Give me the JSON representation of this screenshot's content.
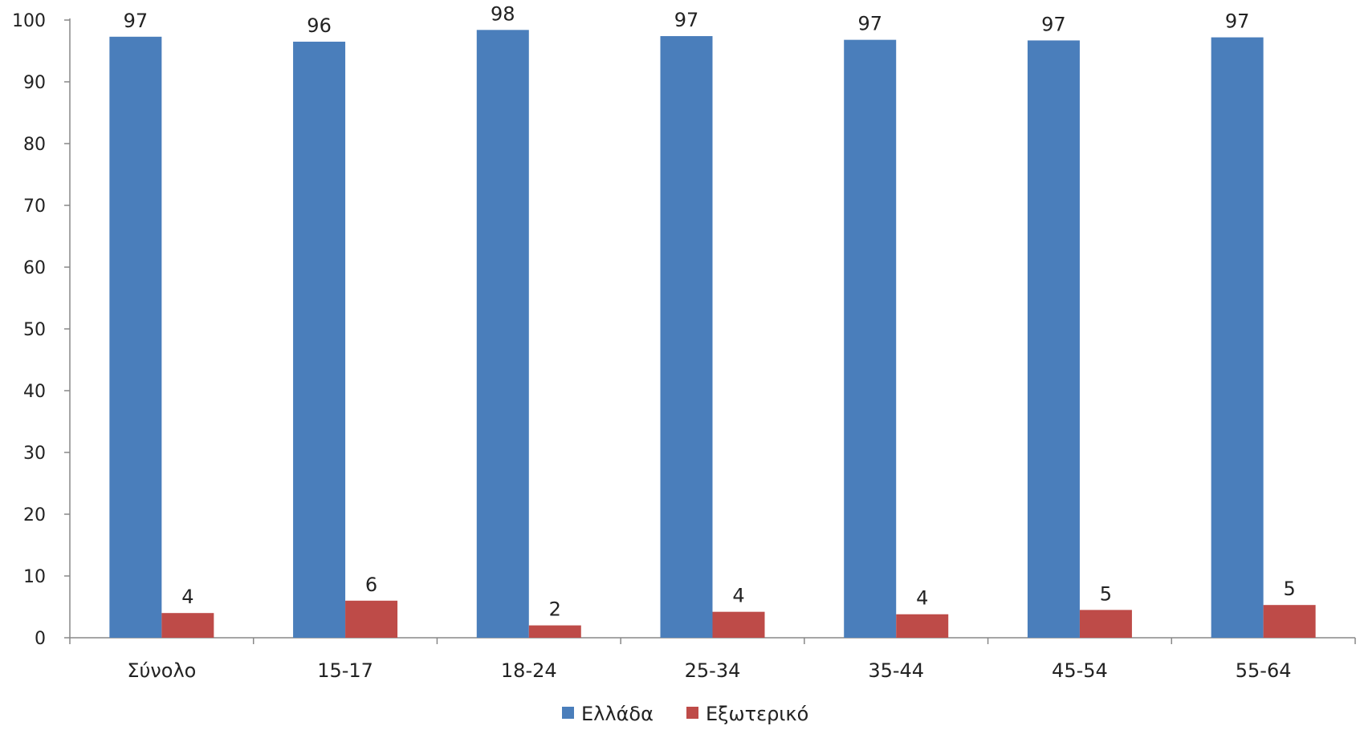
{
  "chart_data": {
    "type": "bar",
    "categories": [
      "Σύνολο",
      "15-17",
      "18-24",
      "25-34",
      "35-44",
      "45-54",
      "55-64"
    ],
    "series": [
      {
        "name": "Ελλάδα",
        "color": "#4a7ebb",
        "values": [
          97.3,
          96.5,
          98.4,
          97.4,
          96.8,
          96.7,
          97.2
        ],
        "labels": [
          "97",
          "96",
          "98",
          "97",
          "97",
          "97",
          "97"
        ]
      },
      {
        "name": "Εξωτερικό",
        "color": "#be4b48",
        "values": [
          4.0,
          6.0,
          2.0,
          4.2,
          3.8,
          4.5,
          5.3
        ],
        "labels": [
          "4",
          "6",
          "2",
          "4",
          "4",
          "5",
          "5"
        ]
      }
    ],
    "title": "",
    "xlabel": "",
    "ylabel": "",
    "ylim": [
      0,
      100
    ],
    "yticks": [
      0,
      10,
      20,
      30,
      40,
      50,
      60,
      70,
      80,
      90,
      100
    ],
    "grid": false,
    "legend_position": "bottom"
  }
}
